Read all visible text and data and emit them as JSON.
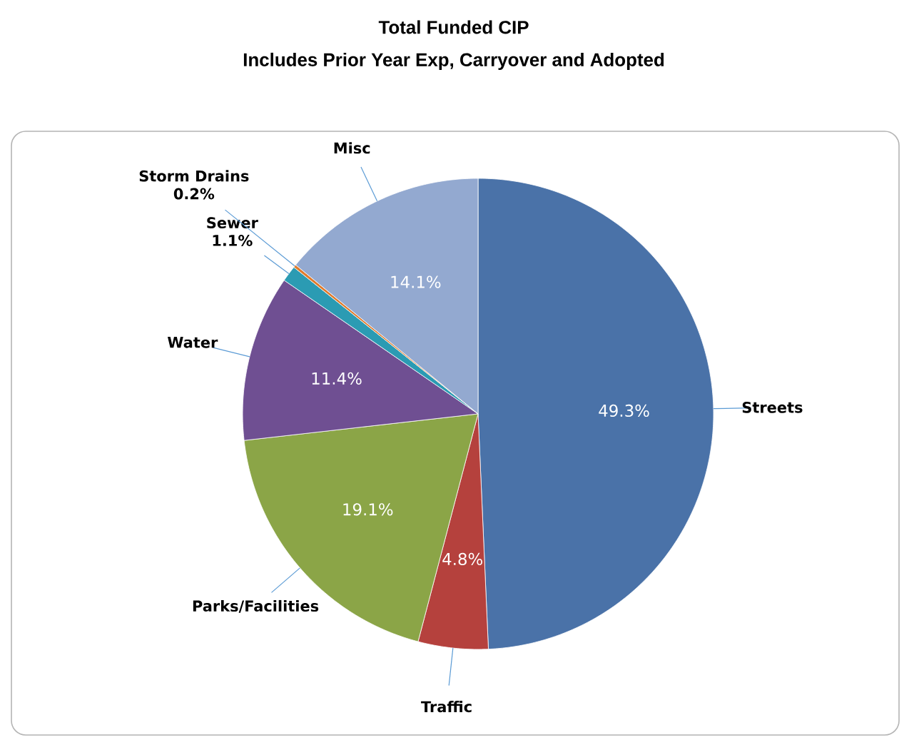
{
  "chart_data": {
    "type": "pie",
    "title": "Total Funded CIP",
    "subtitle": "Includes Prior Year Exp, Carryover and Adopted",
    "categories": [
      "Streets",
      "Traffic",
      "Parks/Facilities",
      "Water",
      "Sewer",
      "Storm Drains",
      "Misc"
    ],
    "values": [
      49.3,
      4.8,
      19.1,
      11.4,
      1.1,
      0.2,
      14.1
    ],
    "value_labels": [
      "49.3%",
      "4.8%",
      "19.1%",
      "11.4%",
      "1.1%",
      "0.2%",
      "14.1%"
    ],
    "colors": [
      "#4a72a8",
      "#b5413d",
      "#8ba547",
      "#6f4f92",
      "#2b9bb3",
      "#e07b2c",
      "#93a9d0"
    ]
  }
}
